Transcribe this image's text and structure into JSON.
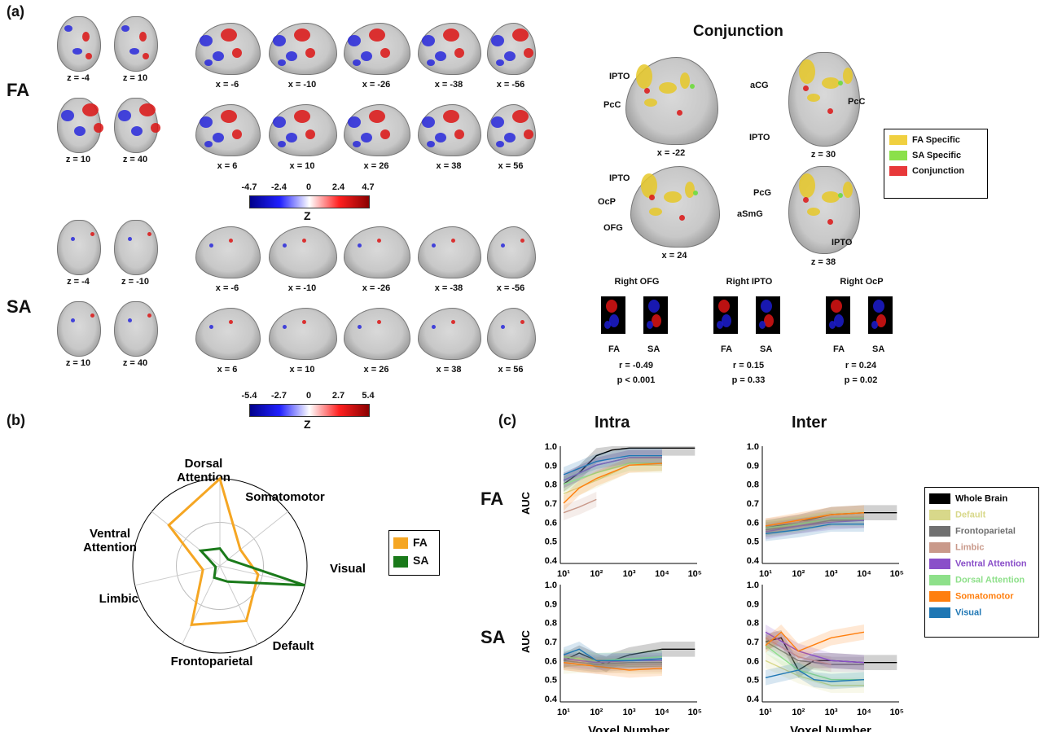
{
  "panels": {
    "a": "(a)",
    "b": "(b)",
    "c": "(c)"
  },
  "section_a": {
    "row_labels": {
      "fa": "FA",
      "sa": "SA"
    },
    "fa_axial_labels": [
      "z = -4",
      "z = 10",
      "z = 10",
      "z = 40"
    ],
    "fa_sag_labels_top": [
      "x = -6",
      "x = -10",
      "x = -26",
      "x = -38",
      "x = -56"
    ],
    "fa_sag_labels_bottom": [
      "x = 6",
      "x = 10",
      "x = 26",
      "x = 38",
      "x = 56"
    ],
    "sa_axial_labels": [
      "z = -4",
      "z = -10",
      "z = 10",
      "z = 40"
    ],
    "sa_sag_labels_top": [
      "x = -6",
      "x = -10",
      "x = -26",
      "x = -38",
      "x = -56"
    ],
    "sa_sag_labels_bottom": [
      "x = 6",
      "x = 10",
      "x = 26",
      "x = 38",
      "x = 56"
    ],
    "fa_colorbar": {
      "ticks": [
        "-4.7",
        "-2.4",
        "0",
        "2.4",
        "4.7"
      ],
      "label": "Z"
    },
    "sa_colorbar": {
      "ticks": [
        "-5.4",
        "-2.7",
        "0",
        "2.7",
        "5.4"
      ],
      "label": "Z"
    },
    "conjunction": {
      "title": "Conjunction",
      "views": [
        {
          "caption": "x = -22",
          "labels": [
            "IPTO",
            "PcC"
          ]
        },
        {
          "caption": "z = 30",
          "labels": [
            "aCG",
            "PcC",
            "IPTO"
          ]
        },
        {
          "caption": "x = 24",
          "labels": [
            "IPTO",
            "OcP",
            "OFG"
          ]
        },
        {
          "caption": "z = 38",
          "labels": [
            "PcG",
            "aSmG",
            "IPTO"
          ]
        }
      ],
      "legend": [
        {
          "label": "FA Specific",
          "color": "#f0d040"
        },
        {
          "label": "SA Specific",
          "color": "#8be04a"
        },
        {
          "label": "Conjunction",
          "color": "#e8383a"
        }
      ]
    },
    "rois": [
      {
        "title": "Right OFG",
        "fa": "FA",
        "sa": "SA",
        "r": "r = -0.49",
        "p": "p < 0.001"
      },
      {
        "title": "Right IPTO",
        "fa": "FA",
        "sa": "SA",
        "r": "r = 0.15",
        "p": "p = 0.33"
      },
      {
        "title": "Right OcP",
        "fa": "FA",
        "sa": "SA",
        "r": "r = 0.24",
        "p": "p = 0.02"
      }
    ]
  },
  "chart_data": [
    {
      "type": "radar",
      "axes": [
        "Dorsal Attention",
        "Somatomotor",
        "Visual",
        "Default",
        "Frontoparietal",
        "Limbic",
        "Ventral Attention"
      ],
      "series": [
        {
          "name": "FA",
          "color": "#f5a623",
          "values": [
            1.0,
            0.3,
            0.45,
            0.7,
            0.75,
            0.2,
            0.75
          ]
        },
        {
          "name": "SA",
          "color": "#1a7a1a",
          "values": [
            0.2,
            0.12,
            1.0,
            0.2,
            0.15,
            0.05,
            0.28
          ]
        }
      ],
      "legend_placement": "right"
    },
    {
      "type": "line",
      "title": "Intra",
      "row": "FA",
      "xlabel": "",
      "ylabel": "AUC",
      "xscale": "log",
      "xlim": [
        10,
        100000
      ],
      "ylim": [
        0.4,
        1.0
      ],
      "yticks": [
        "1.0",
        "0.9",
        "0.8",
        "0.7",
        "0.6",
        "0.5",
        "0.4"
      ],
      "xticks": [
        "10¹",
        "10²",
        "10³",
        "10⁴",
        "10⁵"
      ],
      "series": [
        {
          "name": "Whole Brain",
          "x": [
            10,
            30,
            100,
            300,
            1000,
            10000,
            100000
          ],
          "y": [
            0.8,
            0.86,
            0.95,
            0.98,
            0.99,
            0.99,
            0.99
          ]
        },
        {
          "name": "Default",
          "x": [
            10,
            100,
            1000,
            10000
          ],
          "y": [
            0.75,
            0.82,
            0.9,
            0.9
          ]
        },
        {
          "name": "Frontoparietal",
          "x": [
            10,
            100,
            1000,
            10000
          ],
          "y": [
            0.82,
            0.9,
            0.94,
            0.94
          ]
        },
        {
          "name": "Limbic",
          "x": [
            10,
            30,
            100
          ],
          "y": [
            0.65,
            0.68,
            0.72
          ]
        },
        {
          "name": "Ventral Attention",
          "x": [
            10,
            100,
            1000,
            10000
          ],
          "y": [
            0.82,
            0.9,
            0.94,
            0.94
          ]
        },
        {
          "name": "Dorsal Attention",
          "x": [
            10,
            100,
            1000,
            10000
          ],
          "y": [
            0.8,
            0.86,
            0.91,
            0.91
          ]
        },
        {
          "name": "Somatomotor",
          "x": [
            10,
            30,
            100,
            1000,
            10000
          ],
          "y": [
            0.7,
            0.78,
            0.83,
            0.9,
            0.91
          ]
        },
        {
          "name": "Visual",
          "x": [
            10,
            100,
            1000,
            10000
          ],
          "y": [
            0.85,
            0.92,
            0.95,
            0.95
          ]
        }
      ]
    },
    {
      "type": "line",
      "title": "Inter",
      "row": "FA",
      "xlabel": "",
      "ylabel": "",
      "xscale": "log",
      "xlim": [
        10,
        100000
      ],
      "ylim": [
        0.4,
        1.0
      ],
      "yticks": [
        "1.0",
        "0.9",
        "0.8",
        "0.7",
        "0.6",
        "0.5",
        "0.4"
      ],
      "xticks": [
        "10¹",
        "10²",
        "10³",
        "10⁴",
        "10⁵"
      ],
      "series": [
        {
          "name": "Whole Brain",
          "x": [
            10,
            100,
            1000,
            10000,
            100000
          ],
          "y": [
            0.57,
            0.6,
            0.64,
            0.65,
            0.65
          ]
        },
        {
          "name": "Default",
          "x": [
            10,
            100,
            1000,
            10000
          ],
          "y": [
            0.56,
            0.59,
            0.62,
            0.63
          ]
        },
        {
          "name": "Frontoparietal",
          "x": [
            10,
            100,
            1000,
            10000
          ],
          "y": [
            0.56,
            0.58,
            0.61,
            0.61
          ]
        },
        {
          "name": "Limbic",
          "x": [
            10,
            100,
            1000
          ],
          "y": [
            0.58,
            0.6,
            0.62
          ]
        },
        {
          "name": "Ventral Attention",
          "x": [
            10,
            100,
            1000,
            10000
          ],
          "y": [
            0.55,
            0.58,
            0.6,
            0.61
          ]
        },
        {
          "name": "Dorsal Attention",
          "x": [
            10,
            100,
            1000,
            10000
          ],
          "y": [
            0.57,
            0.59,
            0.62,
            0.62
          ]
        },
        {
          "name": "Somatomotor",
          "x": [
            10,
            100,
            1000,
            10000
          ],
          "y": [
            0.58,
            0.61,
            0.64,
            0.65
          ]
        },
        {
          "name": "Visual",
          "x": [
            10,
            100,
            1000,
            10000
          ],
          "y": [
            0.54,
            0.56,
            0.59,
            0.59
          ]
        }
      ]
    },
    {
      "type": "line",
      "title": "",
      "row": "SA",
      "xlabel": "Voxel Number",
      "ylabel": "AUC",
      "xscale": "log",
      "xlim": [
        10,
        100000
      ],
      "ylim": [
        0.4,
        1.0
      ],
      "yticks": [
        "1.0",
        "0.9",
        "0.8",
        "0.7",
        "0.6",
        "0.5",
        "0.4"
      ],
      "xticks": [
        "10¹",
        "10²",
        "10³",
        "10⁴",
        "10⁵"
      ],
      "series": [
        {
          "name": "Whole Brain",
          "x": [
            10,
            30,
            100,
            200,
            300,
            1000,
            10000,
            100000
          ],
          "y": [
            0.6,
            0.64,
            0.6,
            0.58,
            0.6,
            0.63,
            0.66,
            0.66
          ]
        },
        {
          "name": "Default",
          "x": [
            10,
            100,
            1000,
            10000
          ],
          "y": [
            0.57,
            0.58,
            0.57,
            0.57
          ]
        },
        {
          "name": "Frontoparietal",
          "x": [
            10,
            100,
            1000,
            10000
          ],
          "y": [
            0.6,
            0.58,
            0.59,
            0.59
          ]
        },
        {
          "name": "Limbic",
          "x": [
            10,
            100,
            1000,
            10000
          ],
          "y": [
            0.59,
            0.57,
            0.58,
            0.58
          ]
        },
        {
          "name": "Ventral Attention",
          "x": [
            10,
            100,
            1000,
            10000
          ],
          "y": [
            0.61,
            0.59,
            0.6,
            0.6
          ]
        },
        {
          "name": "Dorsal Attention",
          "x": [
            10,
            100,
            1000,
            10000
          ],
          "y": [
            0.62,
            0.6,
            0.61,
            0.62
          ]
        },
        {
          "name": "Somatomotor",
          "x": [
            10,
            100,
            1000,
            10000
          ],
          "y": [
            0.59,
            0.57,
            0.55,
            0.56
          ]
        },
        {
          "name": "Visual",
          "x": [
            10,
            30,
            100,
            1000,
            10000
          ],
          "y": [
            0.63,
            0.66,
            0.6,
            0.6,
            0.61
          ]
        }
      ]
    },
    {
      "type": "line",
      "title": "",
      "row": "SA",
      "xlabel": "Voxel Number",
      "ylabel": "",
      "xscale": "log",
      "xlim": [
        10,
        100000
      ],
      "ylim": [
        0.4,
        1.0
      ],
      "yticks": [
        "1.0",
        "0.9",
        "0.8",
        "0.7",
        "0.6",
        "0.5",
        "0.4"
      ],
      "xticks": [
        "10¹",
        "10²",
        "10³",
        "10⁴",
        "10⁵"
      ],
      "series": [
        {
          "name": "Whole Brain",
          "x": [
            10,
            30,
            100,
            300,
            1000,
            10000,
            100000
          ],
          "y": [
            0.7,
            0.72,
            0.55,
            0.6,
            0.6,
            0.59,
            0.59
          ]
        },
        {
          "name": "Default",
          "x": [
            10,
            100,
            1000,
            10000
          ],
          "y": [
            0.6,
            0.52,
            0.47,
            0.47
          ]
        },
        {
          "name": "Frontoparietal",
          "x": [
            10,
            100,
            1000,
            10000
          ],
          "y": [
            0.7,
            0.6,
            0.58,
            0.58
          ]
        },
        {
          "name": "Limbic",
          "x": [
            10,
            100,
            1000
          ],
          "y": [
            0.72,
            0.62,
            0.58
          ]
        },
        {
          "name": "Ventral Attention",
          "x": [
            10,
            100,
            1000,
            10000
          ],
          "y": [
            0.75,
            0.65,
            0.6,
            0.59
          ]
        },
        {
          "name": "Dorsal Attention",
          "x": [
            10,
            100,
            1000,
            10000
          ],
          "y": [
            0.68,
            0.55,
            0.5,
            0.5
          ]
        },
        {
          "name": "Somatomotor",
          "x": [
            10,
            30,
            100,
            1000,
            10000
          ],
          "y": [
            0.68,
            0.75,
            0.65,
            0.72,
            0.75
          ]
        },
        {
          "name": "Visual",
          "x": [
            10,
            100,
            300,
            1000,
            10000
          ],
          "y": [
            0.51,
            0.55,
            0.5,
            0.49,
            0.5
          ]
        }
      ]
    }
  ],
  "section_c": {
    "col_titles": [
      "Intra",
      "Inter"
    ],
    "row_labels": [
      "FA",
      "SA"
    ],
    "ylabel": "AUC",
    "xlabel": "Voxel Number",
    "legend": [
      {
        "label": "Whole Brain",
        "color": "#000000"
      },
      {
        "label": "Default",
        "color": "#d8d88a"
      },
      {
        "label": "Frontoparietal",
        "color": "#707070"
      },
      {
        "label": "Limbic",
        "color": "#c9998a"
      },
      {
        "label": "Ventral Attention",
        "color": "#8a4fc9"
      },
      {
        "label": "Dorsal Attention",
        "color": "#8ee08a"
      },
      {
        "label": "Somatomotor",
        "color": "#ff7f0e"
      },
      {
        "label": "Visual",
        "color": "#1f77b4"
      }
    ]
  }
}
